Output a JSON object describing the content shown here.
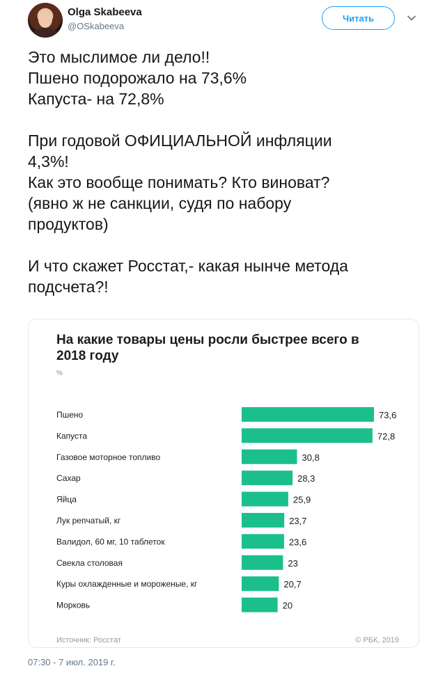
{
  "author": {
    "name": "Olga Skabeeva",
    "handle": "@OSkabeeva",
    "follow_label": "Читать"
  },
  "tweet": {
    "paragraphs": [
      [
        "Это мыслимое ли дело!!",
        "Пшено подорожало на 73,6%",
        "Капуста- на 72,8%"
      ],
      [
        "При годовой ОФИЦИАЛЬНОЙ инфляции",
        "4,3%!",
        "Как это вообще понимать? Кто виноват?",
        "(явно ж не санкции, судя по набору",
        "продуктов)"
      ],
      [
        "И что скажет Росстат,- какая нынче метода",
        "подсчета?!"
      ]
    ],
    "timestamp": "07:30 - 7 июл. 2019 г."
  },
  "card": {
    "source": "Источник: Росстат",
    "copyright": "© РБК, 2019"
  },
  "colors": {
    "bar": "#1bbf8b",
    "accent": "#1da1f2"
  },
  "chart_data": {
    "type": "bar",
    "orientation": "horizontal",
    "title": "На какие товары цены росли быстрее всего в 2018 году",
    "unit": "%",
    "categories": [
      "Пшено",
      "Капуста",
      "Газовое моторное топливо",
      "Сахар",
      "Яйца",
      "Лук репчатый, кг",
      "Валидол, 60 мг, 10 таблеток",
      "Свекла столовая",
      "Куры охлажденные и мороженые, кг",
      "Морковь"
    ],
    "values": [
      73.6,
      72.8,
      30.8,
      28.3,
      25.9,
      23.7,
      23.6,
      23,
      20.7,
      20
    ],
    "value_labels": [
      "73,6",
      "72,8",
      "30,8",
      "28,3",
      "25,9",
      "23,7",
      "23,6",
      "23",
      "20,7",
      "20"
    ],
    "xlim": [
      0,
      73.6
    ],
    "grid": false,
    "legend": "none"
  }
}
